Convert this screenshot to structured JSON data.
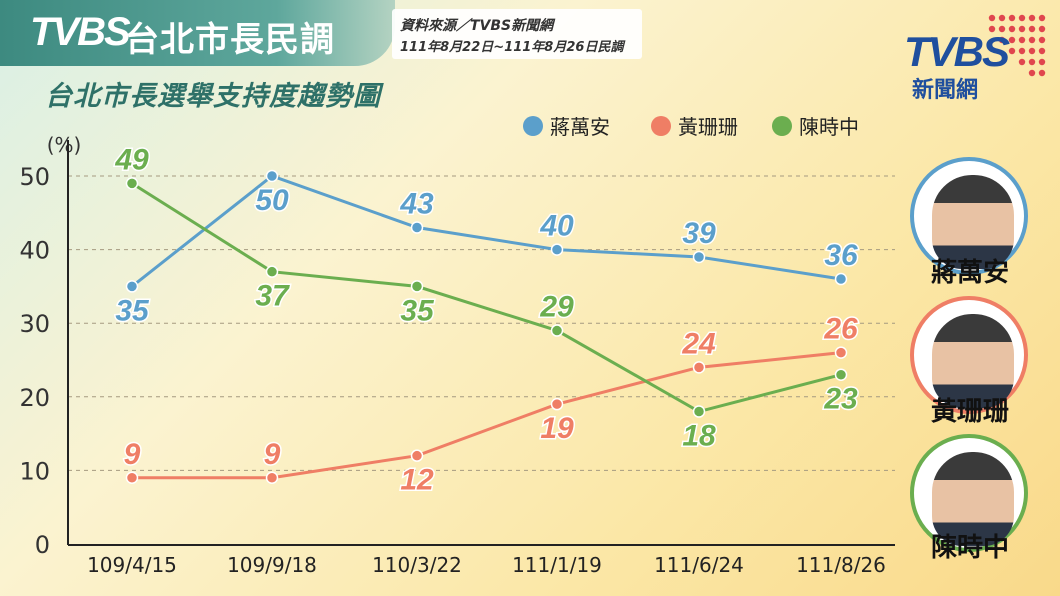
{
  "header": {
    "logo": "TVBS",
    "title": "台北市長民調",
    "source_line1": "資料來源／TVBS新聞網",
    "source_line2": "111年8月22日~111年8月26日民調",
    "subtitle": "台北市長選舉支持度趨勢圖"
  },
  "brand": {
    "logo": "TVBS",
    "sub": "新聞網",
    "color": "#1f4f9e",
    "dot_color": "#e0464e"
  },
  "candidates": [
    {
      "name": "蔣萬安",
      "color": "#5b9fcb",
      "icon": "portrait-chiang"
    },
    {
      "name": "黃珊珊",
      "color": "#ef7e65",
      "icon": "portrait-huang"
    },
    {
      "name": "陳時中",
      "color": "#6bae4f",
      "icon": "portrait-chen"
    }
  ],
  "chart_data": {
    "type": "line",
    "ylabel": "(%)",
    "xlabel": "",
    "categories": [
      "109/4/15",
      "109/9/18",
      "110/3/22",
      "111/1/19",
      "111/6/24",
      "111/8/26"
    ],
    "ylim": [
      0,
      55
    ],
    "yticks": [
      0,
      10,
      20,
      30,
      40,
      50
    ],
    "grid": true,
    "legend_position": "top-right",
    "series": [
      {
        "name": "蔣萬安",
        "color": "#5b9fcb",
        "values": [
          35,
          50,
          43,
          40,
          39,
          36
        ],
        "label_pos": [
          "below",
          "below",
          "above",
          "above",
          "above",
          "above"
        ]
      },
      {
        "name": "黃珊珊",
        "color": "#ef7e65",
        "values": [
          9,
          9,
          12,
          19,
          24,
          26
        ],
        "label_pos": [
          "above",
          "above",
          "below",
          "below",
          "above",
          "above"
        ]
      },
      {
        "name": "陳時中",
        "color": "#6bae4f",
        "values": [
          49,
          37,
          35,
          29,
          18,
          23
        ],
        "label_pos": [
          "above",
          "below",
          "below",
          "above",
          "below",
          "below"
        ]
      }
    ]
  }
}
